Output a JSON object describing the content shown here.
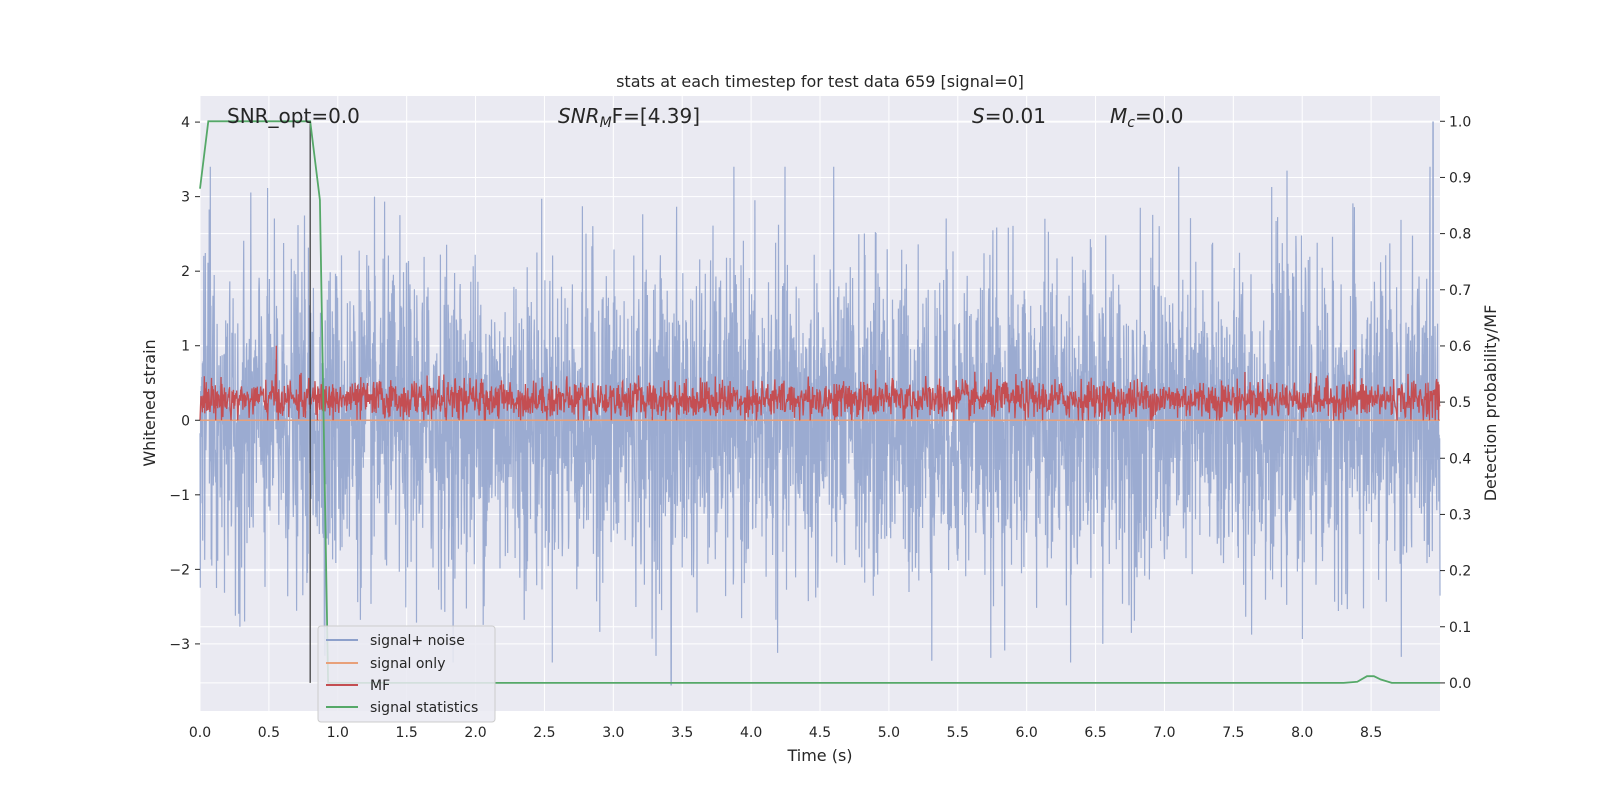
{
  "chart_data": {
    "type": "line",
    "title": "stats at each timestep for test data 659 [signal=0]",
    "xlabel": "Time (s)",
    "ylabel": "Whitened strain",
    "ylabel_right": "Detection probability/MF",
    "xlim": [
      0.0,
      9.0
    ],
    "ylim": [
      -3.9,
      4.35
    ],
    "ylim_right": [
      -0.05,
      1.045
    ],
    "x_ticks": [
      0.0,
      0.5,
      1.0,
      1.5,
      2.0,
      2.5,
      3.0,
      3.5,
      4.0,
      4.5,
      5.0,
      5.5,
      6.0,
      6.5,
      7.0,
      7.5,
      8.0,
      8.5
    ],
    "x_tick_labels": [
      "0.0",
      "0.5",
      "1.0",
      "1.5",
      "2.0",
      "2.5",
      "3.0",
      "3.5",
      "4.0",
      "4.5",
      "5.0",
      "5.5",
      "6.0",
      "6.5",
      "7.0",
      "7.5",
      "8.0",
      "8.5"
    ],
    "y_ticks": [
      -3,
      -2,
      -1,
      0,
      1,
      2,
      3,
      4
    ],
    "y_tick_labels": [
      "−3",
      "−2",
      "−1",
      "0",
      "1",
      "2",
      "3",
      "4"
    ],
    "y_ticks_right": [
      0.0,
      0.1,
      0.2,
      0.3,
      0.4,
      0.5,
      0.6,
      0.7,
      0.8,
      0.9,
      1.0
    ],
    "y_tick_labels_right": [
      "0.0",
      "0.1",
      "0.2",
      "0.3",
      "0.4",
      "0.5",
      "0.6",
      "0.7",
      "0.8",
      "0.9",
      "1.0"
    ],
    "grid": true,
    "legend_position": "lower-left",
    "annotations": {
      "snr_opt": "SNR_opt=0.0",
      "snr_mf_base": "SNR",
      "snr_mf_sub": "M",
      "snr_mf_rest": "F=[4.39]",
      "s_sym": "S",
      "s_val": "=0.01",
      "mc_base": "M",
      "mc_sub": "c",
      "mc_val": "=0.0"
    },
    "marker_line_x": 0.8,
    "series": [
      {
        "name": "signal+ noise",
        "axis": "left",
        "color": "#8da0cb",
        "description_values": "whitened noise, roughly ±1 sigma, peaks to about 4.0 at 8.95 s and -3.55 at 3.42 s",
        "approx_range": [
          -3.55,
          4.0
        ]
      },
      {
        "name": "signal only",
        "axis": "left",
        "color": "#e8a07a",
        "x": [
          0.0,
          9.0
        ],
        "y": [
          0.0,
          0.0
        ]
      },
      {
        "name": "MF",
        "axis": "left",
        "color": "#c44e52",
        "approx_range": [
          0.0,
          1.0
        ]
      },
      {
        "name": "signal statistics",
        "axis": "right",
        "color": "#55a868",
        "x": [
          0.0,
          0.06,
          0.8,
          0.87,
          0.93,
          1.0,
          8.3,
          8.4,
          8.47,
          8.52,
          8.57,
          8.65,
          9.0
        ],
        "y": [
          0.88,
          1.0,
          1.0,
          0.86,
          0.0,
          0.0,
          0.0,
          0.002,
          0.012,
          0.012,
          0.006,
          0.0,
          0.0
        ]
      }
    ]
  }
}
